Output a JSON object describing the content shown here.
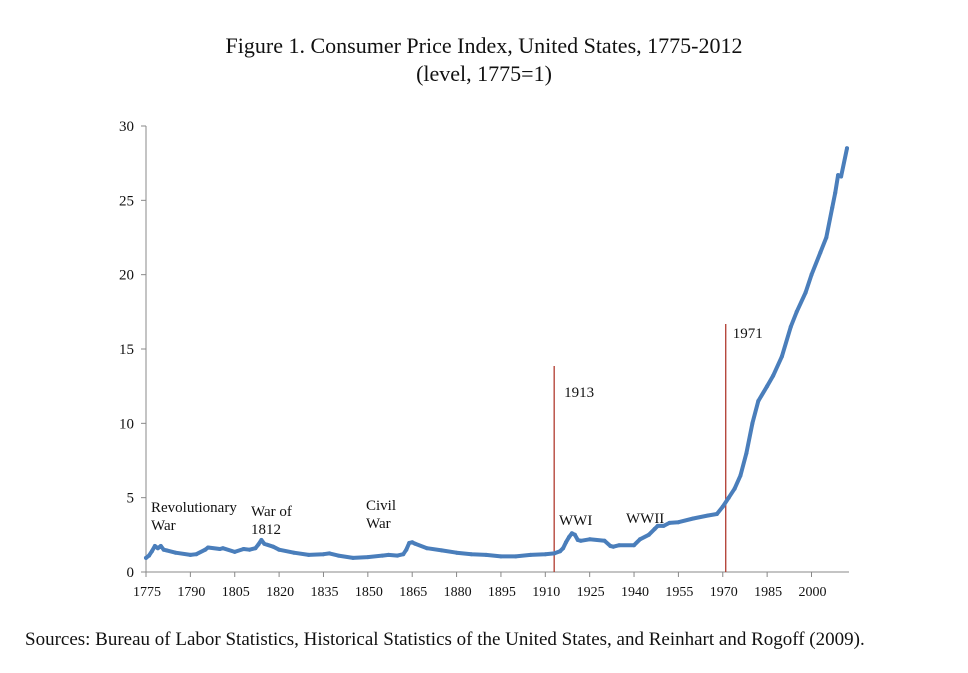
{
  "figure": {
    "title_line1": "Figure 1. Consumer Price Index, United States, 1775-2012",
    "title_line2": "(level, 1775=1)",
    "source": "Sources: Bureau of Labor Statistics, Historical Statistics of the United States, and Reinhart and Rogoff (2009)."
  },
  "chart_data": {
    "type": "line",
    "title": "Figure 1. Consumer Price Index, United States, 1775-2012",
    "subtitle": "(level, 1775=1)",
    "xlabel": "",
    "ylabel": "",
    "xlim": [
      1775,
      2012
    ],
    "ylim": [
      0,
      30
    ],
    "x_ticks": [
      1775,
      1790,
      1805,
      1820,
      1835,
      1850,
      1865,
      1880,
      1895,
      1910,
      1925,
      1940,
      1955,
      1970,
      1985,
      2000
    ],
    "y_ticks": [
      0,
      5,
      10,
      15,
      20,
      25,
      30
    ],
    "grid": false,
    "legend": "none",
    "series_color": "#4a7ebb",
    "vline_color": "#b03a2e",
    "series": [
      {
        "x": [
          1775,
          1776,
          1777,
          1778,
          1779,
          1780,
          1781,
          1782,
          1785,
          1790,
          1792,
          1795,
          1796,
          1800,
          1801,
          1805,
          1808,
          1810,
          1812,
          1813,
          1814,
          1815,
          1818,
          1820,
          1825,
          1830,
          1835,
          1837,
          1840,
          1845,
          1850,
          1855,
          1857,
          1860,
          1862,
          1863,
          1864,
          1865,
          1866,
          1870,
          1875,
          1880,
          1885,
          1890,
          1895,
          1900,
          1905,
          1910,
          1913,
          1915,
          1916,
          1917,
          1918,
          1919,
          1920,
          1921,
          1922,
          1925,
          1930,
          1932,
          1933,
          1935,
          1940,
          1942,
          1945,
          1947,
          1948,
          1950,
          1952,
          1955,
          1960,
          1965,
          1968,
          1970,
          1972,
          1974,
          1976,
          1978,
          1980,
          1982,
          1985,
          1987,
          1990,
          1993,
          1995,
          1998,
          2000,
          2003,
          2005,
          2007,
          2008,
          2009,
          2010,
          2012
        ],
        "y": [
          0.95,
          1.1,
          1.4,
          1.75,
          1.6,
          1.75,
          1.5,
          1.45,
          1.3,
          1.15,
          1.2,
          1.5,
          1.65,
          1.55,
          1.6,
          1.35,
          1.55,
          1.5,
          1.6,
          1.85,
          2.15,
          1.9,
          1.7,
          1.5,
          1.3,
          1.15,
          1.2,
          1.25,
          1.1,
          0.95,
          1.0,
          1.1,
          1.15,
          1.1,
          1.2,
          1.5,
          1.95,
          2.0,
          1.9,
          1.6,
          1.45,
          1.3,
          1.2,
          1.15,
          1.05,
          1.05,
          1.15,
          1.2,
          1.25,
          1.4,
          1.6,
          2.0,
          2.35,
          2.6,
          2.5,
          2.15,
          2.1,
          2.2,
          2.1,
          1.75,
          1.7,
          1.8,
          1.8,
          2.2,
          2.5,
          2.9,
          3.1,
          3.1,
          3.3,
          3.35,
          3.6,
          3.8,
          3.9,
          4.4,
          5.0,
          5.6,
          6.5,
          8.0,
          10.0,
          11.5,
          12.5,
          13.2,
          14.5,
          16.5,
          17.5,
          18.8,
          20.0,
          21.5,
          22.5,
          24.5,
          25.5,
          26.7,
          26.6,
          28.5
        ]
      }
    ],
    "vlines": [
      {
        "x": 1913,
        "label": "1913"
      },
      {
        "x": 1971,
        "label": "1971"
      }
    ],
    "annotations": [
      {
        "line1": "Revolutionary",
        "line2": "War"
      },
      {
        "line1": "War of",
        "line2": "1812"
      },
      {
        "line1": "Civil",
        "line2": "War"
      },
      {
        "line1": "WWI",
        "line2": ""
      },
      {
        "line1": "WWII",
        "line2": ""
      }
    ]
  }
}
